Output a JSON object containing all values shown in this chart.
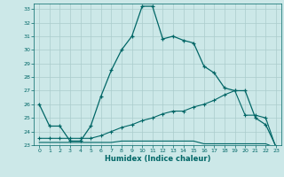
{
  "xlabel": "Humidex (Indice chaleur)",
  "bg_color": "#cce8e8",
  "grid_color": "#aacccc",
  "line_color": "#006666",
  "xlim": [
    -0.5,
    23.5
  ],
  "ylim": [
    23,
    33.4
  ],
  "yticks": [
    23,
    24,
    25,
    26,
    27,
    28,
    29,
    30,
    31,
    32,
    33
  ],
  "xticks": [
    0,
    1,
    2,
    3,
    4,
    5,
    6,
    7,
    8,
    9,
    10,
    11,
    12,
    13,
    14,
    15,
    16,
    17,
    18,
    19,
    20,
    21,
    22,
    23
  ],
  "line1_x": [
    0,
    1,
    2,
    3,
    4,
    5,
    6,
    7,
    8,
    9,
    10,
    11,
    12,
    13,
    14,
    15,
    16,
    17,
    18,
    19,
    20,
    21,
    22,
    23
  ],
  "line1_y": [
    26.0,
    24.4,
    24.4,
    23.3,
    23.3,
    24.4,
    26.6,
    28.5,
    30.0,
    31.0,
    33.2,
    33.2,
    30.8,
    31.0,
    30.7,
    30.5,
    28.8,
    28.3,
    27.2,
    27.0,
    27.0,
    25.0,
    24.5,
    22.9
  ],
  "line2_x": [
    0,
    1,
    2,
    3,
    4,
    5,
    6,
    7,
    8,
    9,
    10,
    11,
    12,
    13,
    14,
    15,
    16,
    17,
    18,
    19,
    20,
    21,
    22,
    23
  ],
  "line2_y": [
    23.5,
    23.5,
    23.5,
    23.5,
    23.5,
    23.5,
    23.7,
    24.0,
    24.3,
    24.5,
    24.8,
    25.0,
    25.3,
    25.5,
    25.5,
    25.8,
    26.0,
    26.3,
    26.7,
    27.0,
    25.2,
    25.2,
    25.0,
    22.8
  ],
  "line3_x": [
    0,
    1,
    2,
    3,
    4,
    5,
    6,
    7,
    8,
    9,
    10,
    11,
    12,
    13,
    14,
    15,
    16,
    17,
    18,
    19,
    20,
    21,
    22,
    23
  ],
  "line3_y": [
    23.2,
    23.2,
    23.2,
    23.2,
    23.2,
    23.2,
    23.2,
    23.2,
    23.3,
    23.3,
    23.3,
    23.3,
    23.3,
    23.3,
    23.3,
    23.3,
    23.1,
    23.1,
    23.1,
    23.1,
    23.1,
    23.1,
    23.1,
    22.8
  ],
  "marker1_x": [
    0,
    1,
    2,
    3,
    4,
    5,
    6,
    7,
    8,
    9,
    10,
    11,
    12,
    13,
    14,
    15,
    16,
    17,
    18,
    19,
    20,
    21,
    22,
    23
  ],
  "marker2_x": [
    0,
    2,
    5,
    7,
    10,
    11,
    12,
    13,
    14,
    15,
    18,
    19,
    20,
    21,
    22,
    23
  ],
  "marker2_y": [
    23.5,
    23.5,
    23.5,
    24.0,
    24.8,
    25.0,
    25.3,
    25.5,
    25.5,
    25.8,
    26.7,
    27.0,
    25.2,
    25.2,
    25.0,
    22.8
  ],
  "marker3_x": [
    23
  ],
  "marker3_y": [
    22.8
  ]
}
